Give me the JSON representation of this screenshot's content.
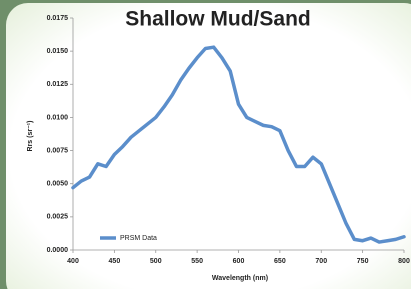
{
  "chart_data": {
    "type": "line",
    "title": "Shallow Mud/Sand",
    "xlabel": "Wavelength (nm)",
    "ylabel": "Rrs (sr⁻¹)",
    "x": [
      400,
      410,
      420,
      430,
      440,
      450,
      460,
      470,
      480,
      490,
      500,
      510,
      520,
      530,
      540,
      550,
      560,
      570,
      580,
      590,
      600,
      610,
      620,
      630,
      640,
      650,
      660,
      670,
      680,
      690,
      700,
      710,
      720,
      730,
      740,
      750,
      760,
      770,
      780,
      790,
      800
    ],
    "series": [
      {
        "name": "PRSM Data",
        "color": "#5b8ecb",
        "values": [
          0.0047,
          0.0052,
          0.0055,
          0.0065,
          0.0063,
          0.0072,
          0.0078,
          0.0085,
          0.009,
          0.0095,
          0.01,
          0.0108,
          0.0117,
          0.0128,
          0.0137,
          0.0145,
          0.0152,
          0.0153,
          0.0145,
          0.0135,
          0.011,
          0.01,
          0.0097,
          0.0094,
          0.0093,
          0.009,
          0.0075,
          0.0063,
          0.0063,
          0.007,
          0.0065,
          0.005,
          0.0035,
          0.002,
          0.0008,
          0.0007,
          0.0009,
          0.0006,
          0.0007,
          0.0008,
          0.001
        ]
      }
    ],
    "xlim": [
      400,
      800
    ],
    "xticks": [
      400,
      450,
      500,
      550,
      600,
      650,
      700,
      750,
      800
    ],
    "ylim": [
      0,
      0.0175
    ],
    "yticks": [
      {
        "value": 0,
        "label": "0.0000"
      },
      {
        "value": 0.0025,
        "label": "0.0025"
      },
      {
        "value": 0.005,
        "label": "0.0050"
      },
      {
        "value": 0.0075,
        "label": "0.0075"
      },
      {
        "value": 0.01,
        "label": "0.0100"
      },
      {
        "value": 0.0125,
        "label": "0.0125"
      },
      {
        "value": 0.015,
        "label": "0.0150"
      },
      {
        "value": 0.0175,
        "label": "0.0175"
      }
    ],
    "legend": "lower left"
  }
}
